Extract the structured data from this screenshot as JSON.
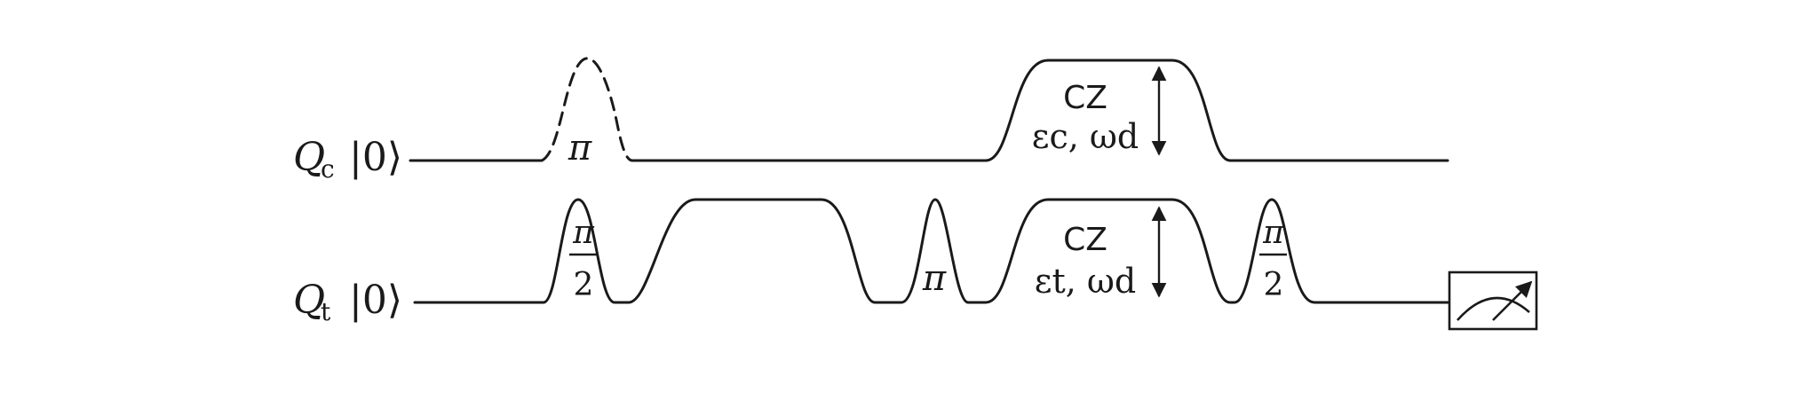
{
  "qubits": {
    "control": {
      "symbol": "Q",
      "subscript": "c",
      "state": "|0⟩"
    },
    "target": {
      "symbol": "Q",
      "subscript": "t",
      "state": "|0⟩"
    }
  },
  "pulses": {
    "control_pi": "π",
    "target_half_pi_first": {
      "numerator": "π",
      "denominator": "2"
    },
    "target_pi": "π",
    "target_half_pi_last": {
      "numerator": "π",
      "denominator": "2"
    }
  },
  "cz_control": {
    "label": "CZ",
    "params": "εc, ωd"
  },
  "cz_target": {
    "label": "CZ",
    "params": "εt, ωd"
  }
}
